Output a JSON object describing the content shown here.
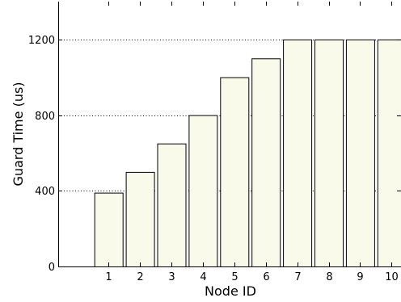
{
  "chart_data": {
    "type": "bar",
    "title": "",
    "xlabel": "Node ID",
    "ylabel": "Guard Time (us)",
    "categories": [
      "1",
      "2",
      "3",
      "4",
      "5",
      "6",
      "7",
      "8",
      "9",
      "10"
    ],
    "values": [
      390,
      500,
      650,
      800,
      1000,
      1100,
      1200,
      1200,
      1200,
      1200
    ],
    "ylim": [
      0,
      1400
    ],
    "yticks": [
      0,
      400,
      800,
      1200
    ],
    "xlim": [
      -0.6,
      10.3
    ],
    "grid": "horizontal-dotted",
    "legend": "none",
    "colors": {
      "bar_fill": "#fafaeb",
      "bar_edge": "#000000",
      "grid": "#000000",
      "axis": "#000000"
    }
  }
}
